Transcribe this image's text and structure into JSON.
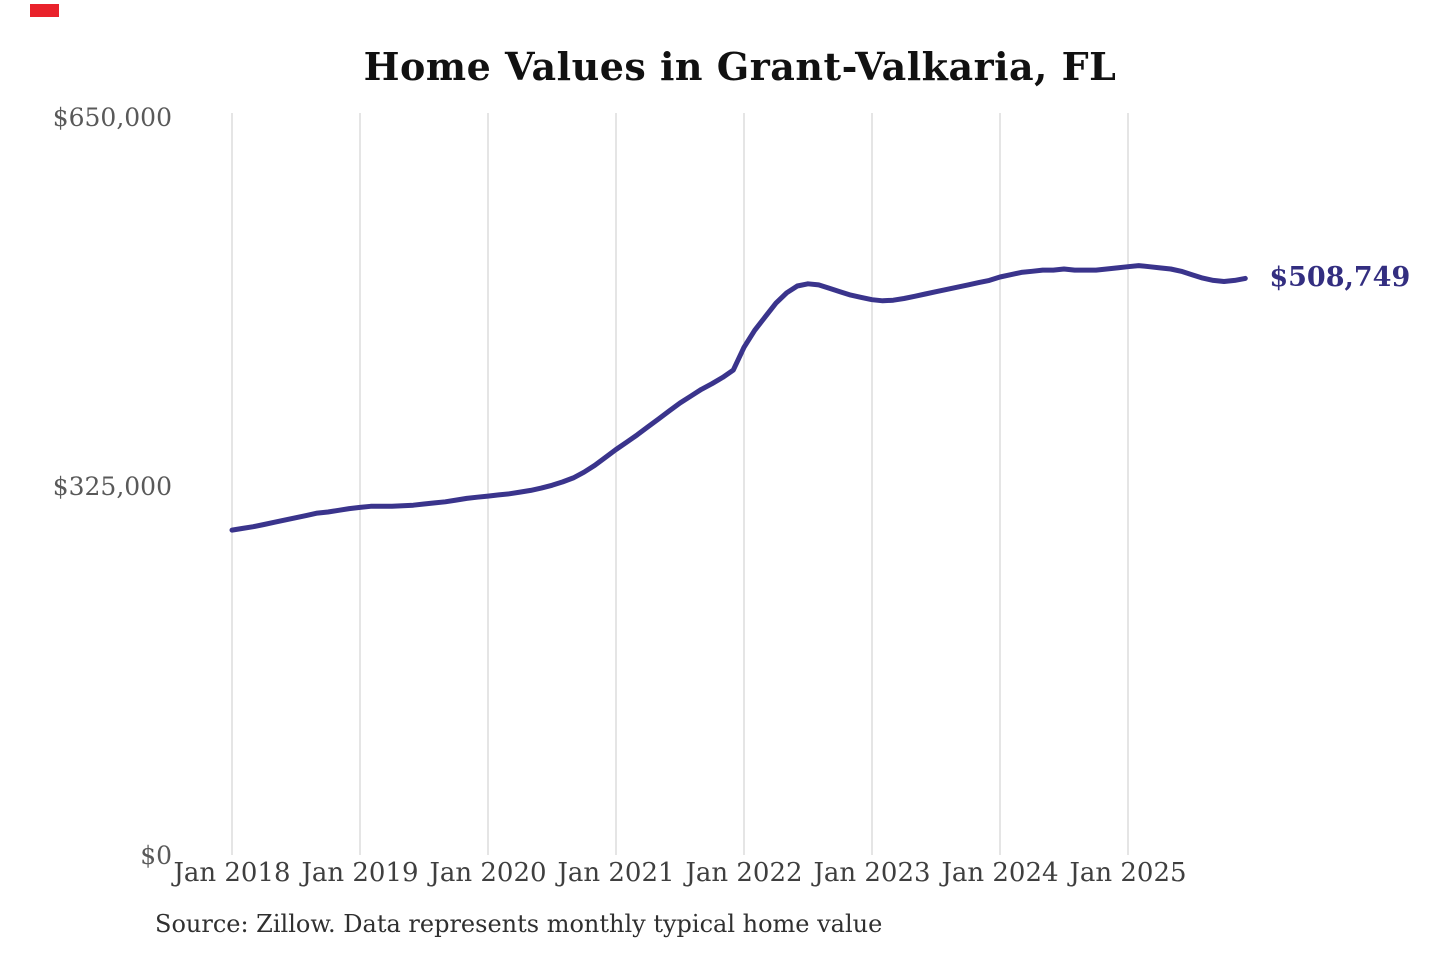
{
  "page": {
    "background_color": "#ffffff",
    "corner_mark_color": "#e9222b"
  },
  "chart": {
    "title": "Home Values in Grant-Valkaria, FL",
    "end_label": "$508,749",
    "source_note": "Source: Zillow. Data represents monthly typical home value",
    "line_color": "#3a348c",
    "end_label_color": "#332e80",
    "grid_color": "#cbcbcb",
    "title_color": "#111111",
    "y_label_color": "#595959",
    "x_label_color": "#3f3f3f"
  },
  "chart_data": {
    "type": "line",
    "title": "Home Values in Grant-Valkaria, FL",
    "xlabel": "",
    "ylabel": "",
    "ylim": [
      0,
      650000
    ],
    "grid": "vertical-only",
    "legend": "none",
    "y_ticks": [
      {
        "value": 0,
        "label": "$0"
      },
      {
        "value": 325000,
        "label": "$325,000"
      },
      {
        "value": 650000,
        "label": "$650,000"
      }
    ],
    "x_tick_labels": [
      "Jan 2018",
      "Jan 2019",
      "Jan 2020",
      "Jan 2021",
      "Jan 2022",
      "Jan 2023",
      "Jan 2024",
      "Jan 2025"
    ],
    "end_annotation": "$508,749",
    "series": [
      {
        "name": "Monthly typical home value",
        "start_month": "2018-01",
        "months_per_point": 1,
        "values": [
          287000,
          288500,
          290000,
          292000,
          294000,
          296000,
          298000,
          300000,
          302000,
          303000,
          304500,
          306000,
          307000,
          308000,
          308000,
          308000,
          308500,
          309000,
          310000,
          311000,
          312000,
          313500,
          315000,
          316000,
          317000,
          318000,
          319000,
          320500,
          322000,
          324000,
          326500,
          329500,
          333000,
          338000,
          344000,
          351000,
          358000,
          364500,
          371000,
          378000,
          385000,
          392000,
          399000,
          405000,
          411000,
          416000,
          421500,
          428000,
          448000,
          463000,
          475000,
          487000,
          496000,
          502000,
          504000,
          503000,
          500000,
          497000,
          494000,
          492000,
          490000,
          489000,
          489500,
          491000,
          493000,
          495000,
          497000,
          499000,
          501000,
          503000,
          505000,
          507000,
          510000,
          512000,
          514000,
          515000,
          516000,
          516000,
          517000,
          516000,
          516000,
          516000,
          517000,
          518000,
          519000,
          520000,
          519000,
          518000,
          517000,
          515000,
          512000,
          509000,
          507000,
          506000,
          507000,
          508749
        ]
      }
    ]
  }
}
